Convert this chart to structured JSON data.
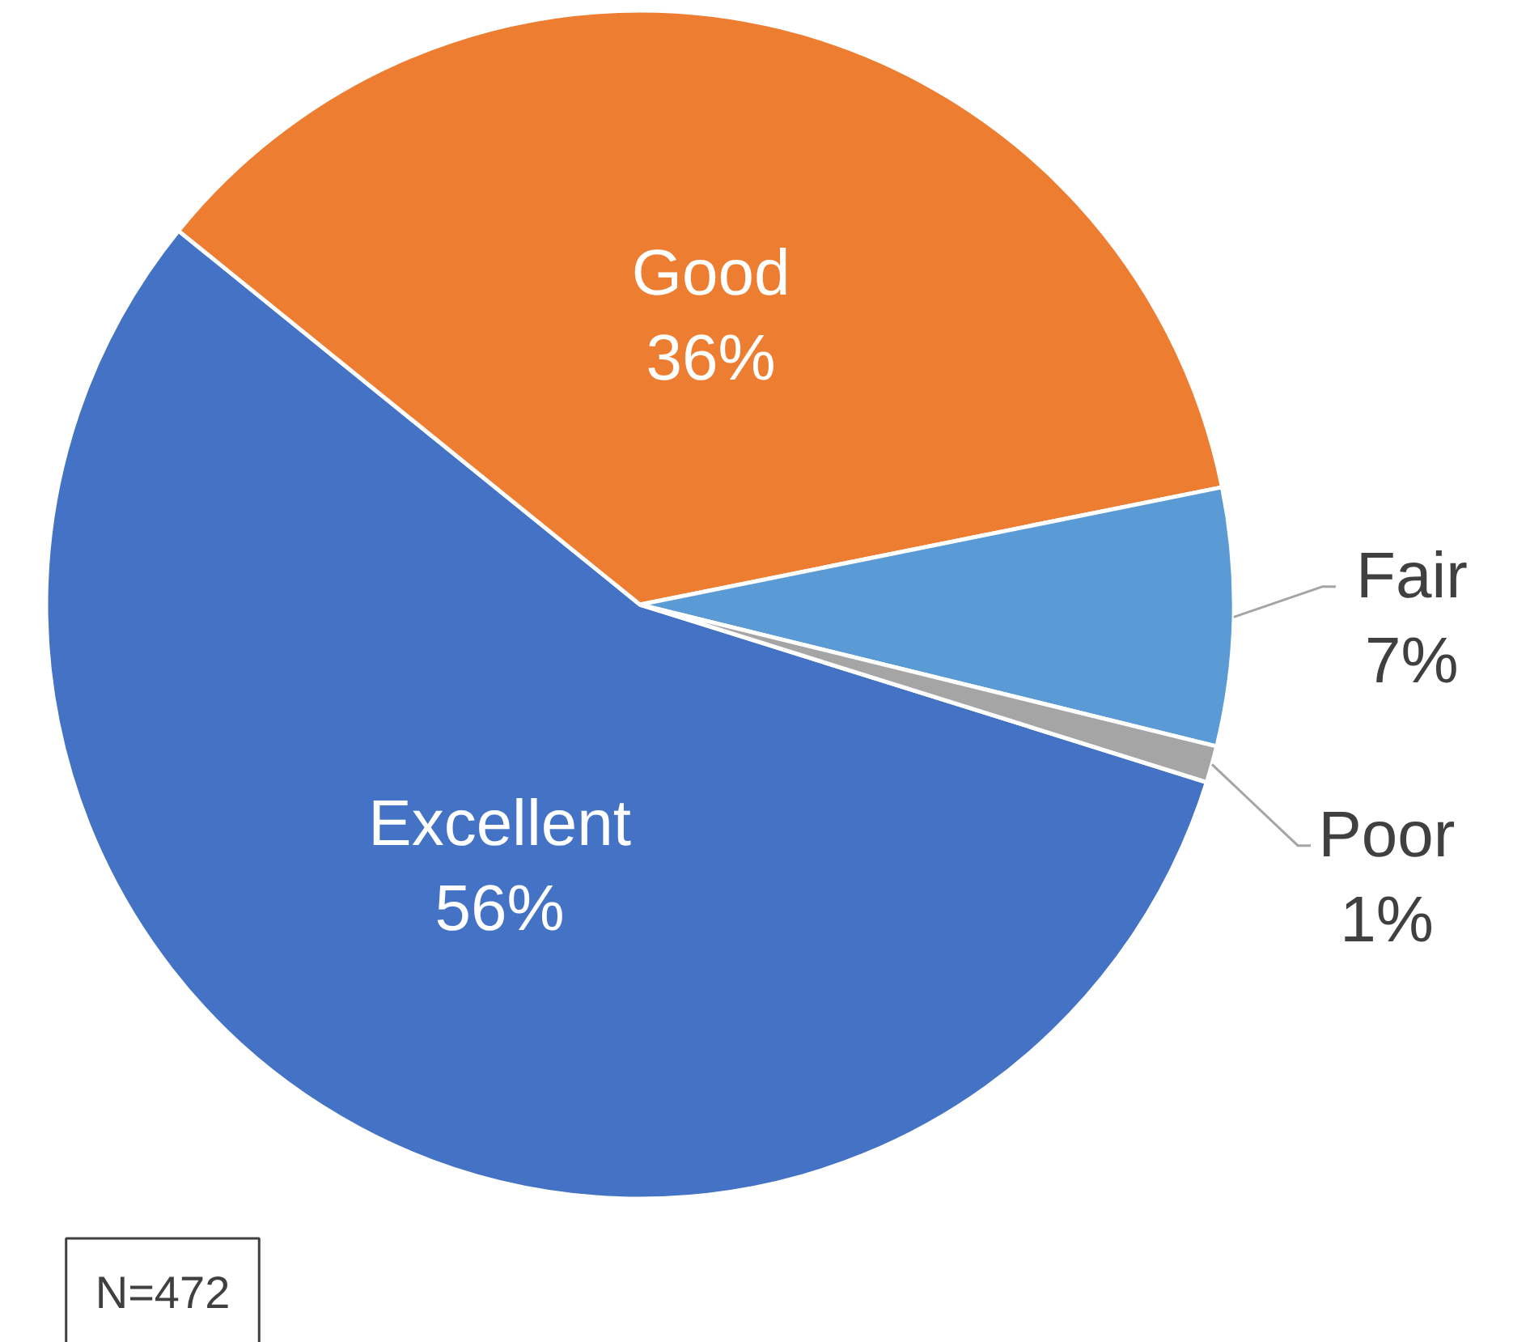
{
  "chart_data": {
    "type": "pie",
    "categories": [
      "Excellent",
      "Good",
      "Fair",
      "Poor"
    ],
    "values": [
      56,
      36,
      7,
      1
    ],
    "value_labels": [
      "56%",
      "36%",
      "7%",
      "1%"
    ],
    "colors": [
      "#4472c4",
      "#ed7d31",
      "#5b9bd5",
      "#a5a5a5"
    ],
    "annotations": [
      "N=472"
    ]
  }
}
